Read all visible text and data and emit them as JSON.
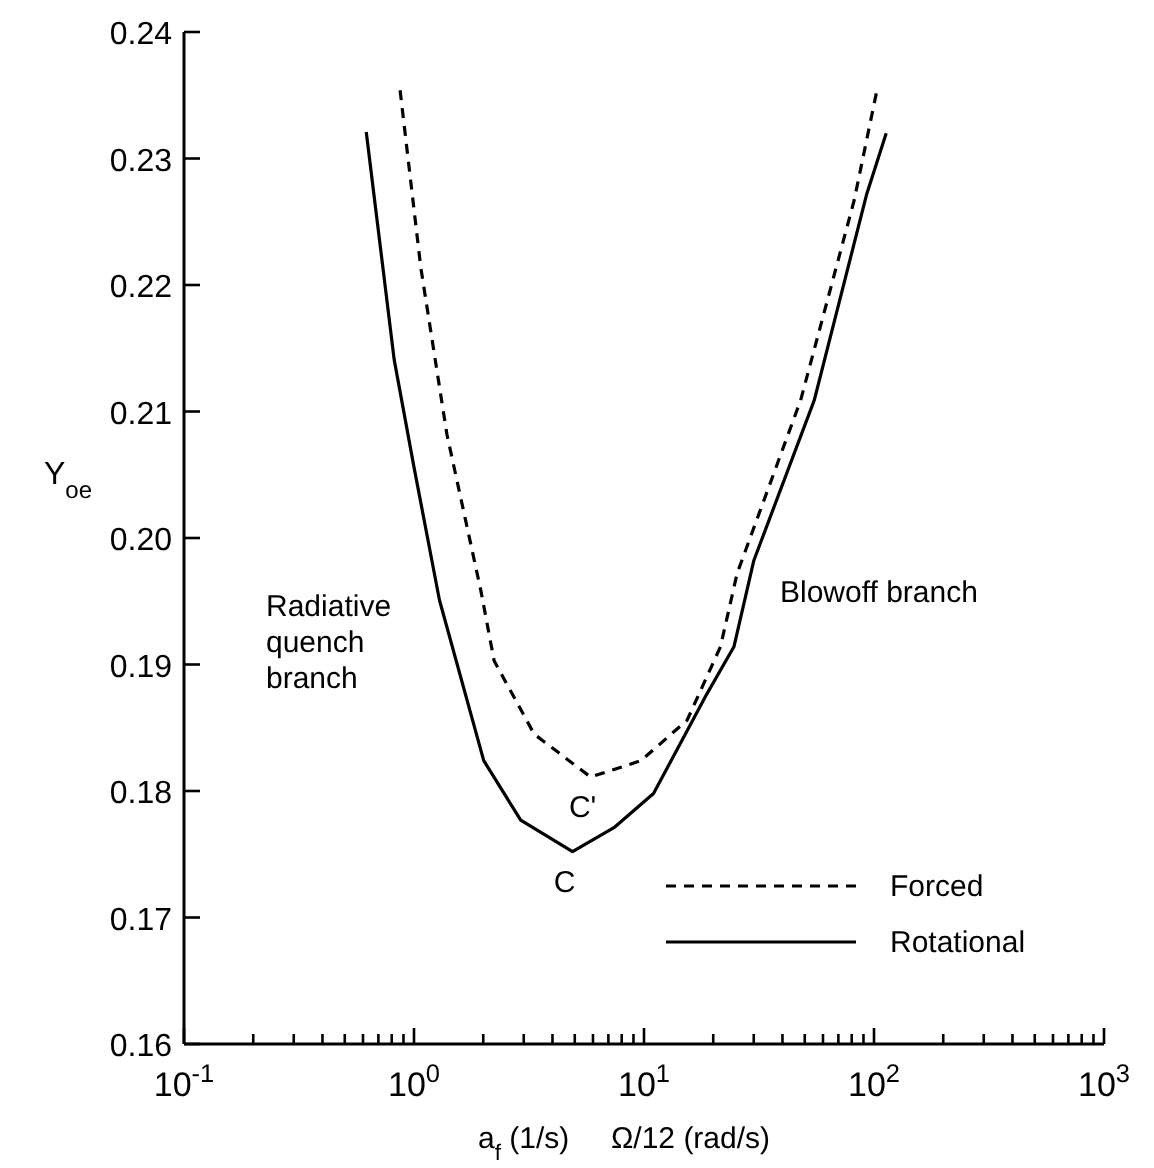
{
  "chart_data": {
    "type": "line",
    "xlabel": "a$_{f}$ (1/s)     Ω/12 (rad/s)",
    "ylabel": "Y$_{oe}$",
    "log": "x",
    "xlim": [
      0.1,
      1000
    ],
    "ylim": [
      0.16,
      0.24
    ],
    "xticks": [
      {
        "value": 0.1,
        "label": "10$^{-1}$"
      },
      {
        "value": 0.2,
        "label": null
      },
      {
        "value": 0.3,
        "label": null
      },
      {
        "value": 0.4,
        "label": null
      },
      {
        "value": 0.5,
        "label": null
      },
      {
        "value": 0.6,
        "label": null
      },
      {
        "value": 0.7,
        "label": null
      },
      {
        "value": 0.8,
        "label": null
      },
      {
        "value": 0.9,
        "label": null
      },
      {
        "value": 1,
        "label": "10$^{0}$"
      },
      {
        "value": 2,
        "label": null
      },
      {
        "value": 3,
        "label": null
      },
      {
        "value": 4,
        "label": null
      },
      {
        "value": 5,
        "label": null
      },
      {
        "value": 6,
        "label": null
      },
      {
        "value": 7,
        "label": null
      },
      {
        "value": 8,
        "label": null
      },
      {
        "value": 9,
        "label": null
      },
      {
        "value": 10,
        "label": "10$^{1}$"
      },
      {
        "value": 20,
        "label": null
      },
      {
        "value": 30,
        "label": null
      },
      {
        "value": 40,
        "label": null
      },
      {
        "value": 50,
        "label": null
      },
      {
        "value": 60,
        "label": null
      },
      {
        "value": 70,
        "label": null
      },
      {
        "value": 80,
        "label": null
      },
      {
        "value": 90,
        "label": null
      },
      {
        "value": 100,
        "label": "10$^{2}$"
      },
      {
        "value": 200,
        "label": null
      },
      {
        "value": 300,
        "label": null
      },
      {
        "value": 400,
        "label": null
      },
      {
        "value": 500,
        "label": null
      },
      {
        "value": 600,
        "label": null
      },
      {
        "value": 700,
        "label": null
      },
      {
        "value": 800,
        "label": null
      },
      {
        "value": 900,
        "label": null
      },
      {
        "value": 1000,
        "label": "10$^{3}$"
      }
    ],
    "yticks": [
      0.16,
      0.17,
      0.18,
      0.19,
      {
        "value": 0.2,
        "label": "0.20"
      },
      0.21,
      0.22,
      0.23,
      0.24
    ],
    "legend": "bottom right",
    "grid": false,
    "marker": "none",
    "series": [
      {
        "name": "Forced",
        "color": "#000000",
        "line_style": "dashed",
        "x": [
          0.87,
          1.07,
          1.39,
          1.95,
          2.23,
          3.33,
          5.86,
          9.7,
          15.4,
          21.5,
          25.4,
          48,
          82,
          103
        ],
        "values": [
          0.2354,
          0.2214,
          0.2082,
          0.1959,
          0.1903,
          0.1845,
          0.1811,
          0.1824,
          0.1856,
          0.1914,
          0.1972,
          0.2109,
          0.2267,
          0.2354
        ]
      },
      {
        "name": "Rotational",
        "color": "#000000",
        "line_style": "solid",
        "x": [
          0.62,
          0.82,
          1.0,
          1.29,
          2.01,
          2.91,
          4.89,
          7.4,
          11.0,
          18.8,
          24.6,
          30,
          55,
          93,
          113
        ],
        "values": [
          0.2321,
          0.2141,
          0.2056,
          0.1951,
          0.1824,
          0.1777,
          0.1752,
          0.1771,
          0.1798,
          0.1877,
          0.1914,
          0.1982,
          0.2109,
          0.2272,
          0.232
        ]
      }
    ],
    "annotations": [
      {
        "text": "C'",
        "x": 5.86,
        "y": 0.1811
      },
      {
        "text": "C",
        "x": 4.89,
        "y": 0.1752
      },
      "Radiative\nquench\nbranch",
      "Blowoff branch"
    ]
  }
}
